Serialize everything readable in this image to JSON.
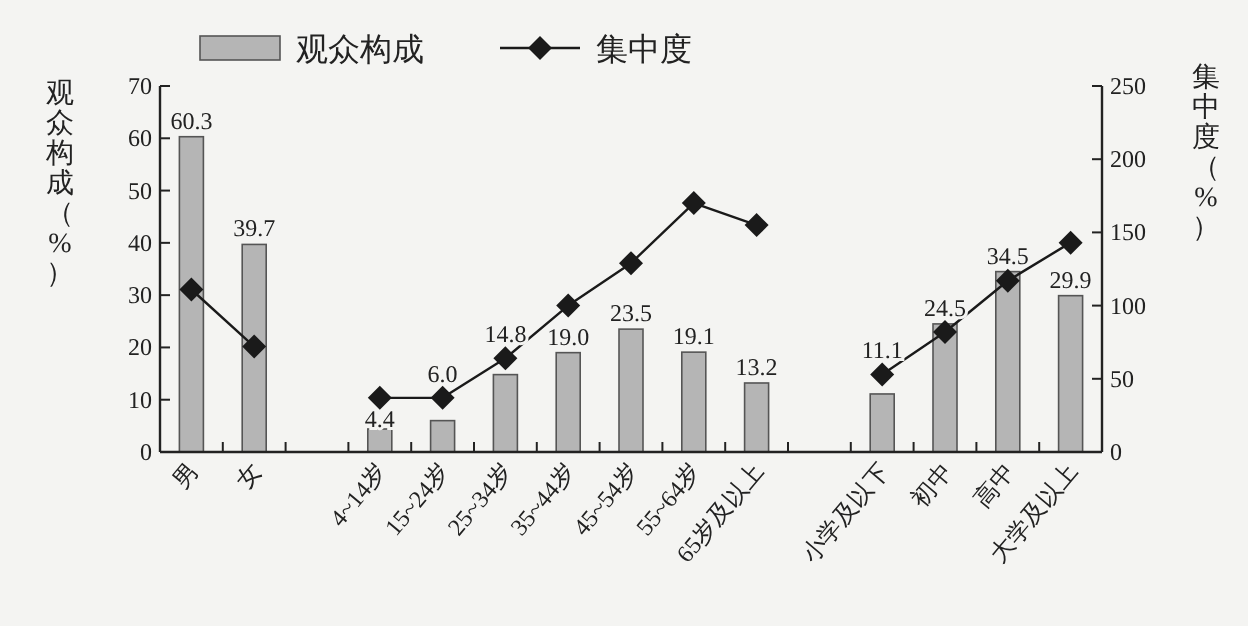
{
  "chart_data": {
    "type": "bar",
    "categories": [
      "男",
      "女",
      null,
      "4~14岁",
      "15~24岁",
      "25~34岁",
      "35~44岁",
      "45~54岁",
      "55~64岁",
      "65岁及以上",
      null,
      "小学及以下",
      "初中",
      "高中",
      "大学及以上"
    ],
    "series": [
      {
        "name": "观众构成",
        "color": "#b5b5b5",
        "values": [
          60.3,
          39.7,
          null,
          4.4,
          6.0,
          14.8,
          19.0,
          23.5,
          19.1,
          13.2,
          null,
          11.1,
          24.5,
          34.5,
          29.9
        ],
        "value_labels": [
          "60.3",
          "39.7",
          null,
          "4.4",
          "6.0",
          "14.8",
          "19.0",
          "23.5",
          "19.1",
          "13.2",
          null,
          "11.1",
          "24.5",
          "34.5",
          "29.9"
        ]
      },
      {
        "name": "集中度",
        "type": "line",
        "axis": "y2",
        "color": "#1a1a1a",
        "marker": "diamond",
        "values": [
          111,
          72,
          null,
          37,
          37,
          64,
          100,
          129,
          170,
          155,
          null,
          53,
          82,
          117,
          143
        ]
      }
    ],
    "ylabel": "观众构成（%）",
    "y2label": "集中度（%）",
    "ylim": [
      0,
      70
    ],
    "yticks": [
      0,
      10,
      20,
      30,
      40,
      50,
      60,
      70
    ],
    "y2lim": [
      0,
      250
    ],
    "y2ticks": [
      0,
      50,
      100,
      150,
      200,
      250
    ],
    "legend": "top",
    "grid": false
  }
}
